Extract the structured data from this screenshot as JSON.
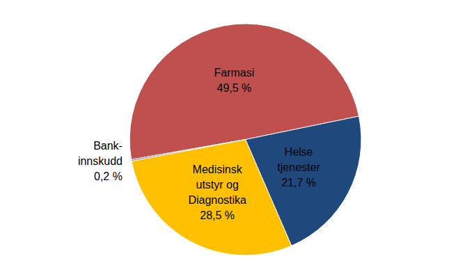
{
  "chart_data": {
    "type": "pie",
    "categories": [
      "Farmasi",
      "Helse\ntjenester",
      "Medisinsk\nutstyr og\nDiagnostika",
      "Bank-\ninnskudd"
    ],
    "values": [
      49.5,
      21.7,
      28.5,
      0.2
    ],
    "value_labels": [
      "49,5 %",
      "21,7 %",
      "28,5 %",
      "0,2 %"
    ],
    "colors": [
      "#c0504d",
      "#1f497d",
      "#ffc000",
      "#8064a2"
    ],
    "data_labels": true
  }
}
